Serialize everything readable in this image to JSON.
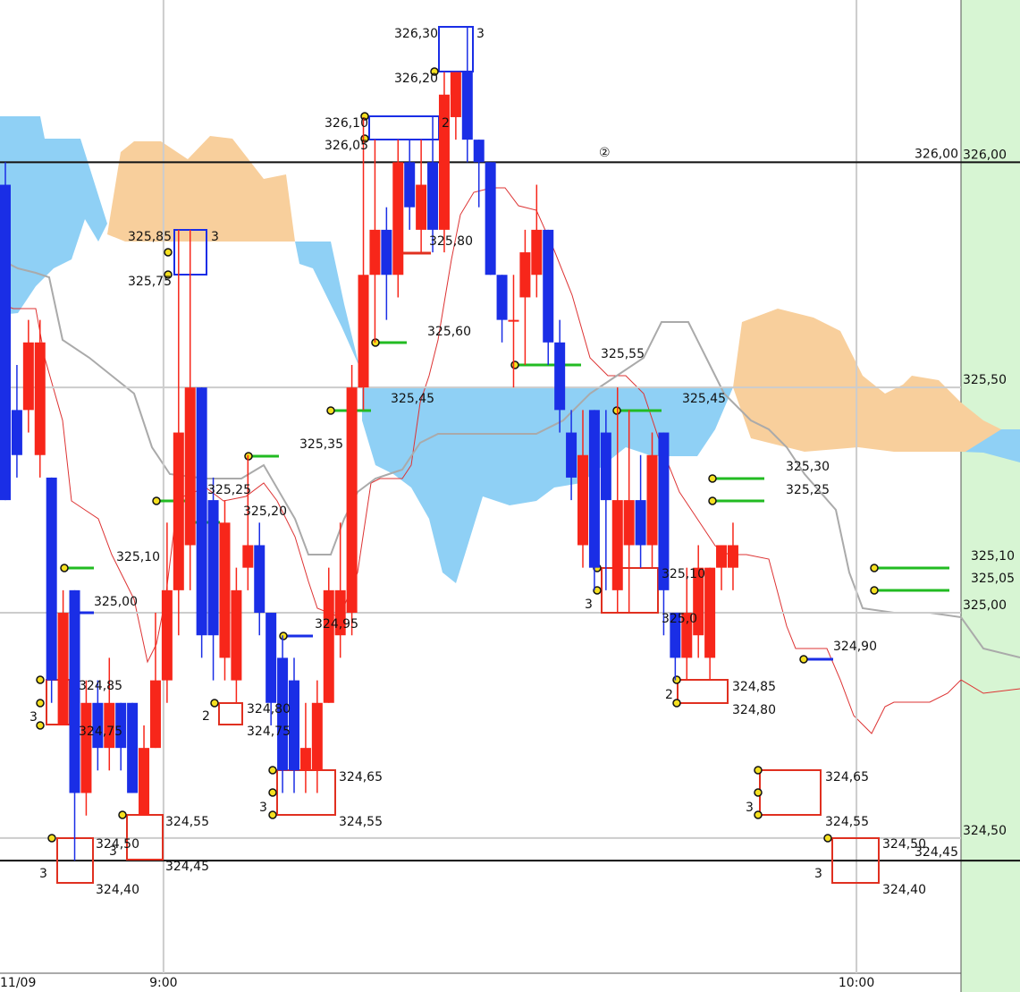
{
  "chart_data": {
    "type": "candlestick",
    "categories": [
      "11/09",
      null,
      null,
      null,
      null,
      null,
      null,
      null,
      null,
      null,
      null,
      null,
      null,
      null,
      "9:00",
      null,
      null,
      null,
      null,
      null,
      null,
      null,
      null,
      null,
      null,
      null,
      null,
      null,
      null,
      null,
      null,
      null,
      null,
      null,
      null,
      null,
      null,
      null,
      null,
      null,
      null,
      null,
      null,
      null,
      null,
      null,
      null,
      null,
      null,
      null,
      null,
      null,
      null,
      null,
      null,
      null,
      null,
      null,
      null,
      null,
      null,
      null,
      null,
      null,
      null,
      null,
      null,
      null,
      null,
      null,
      null,
      null,
      null,
      null,
      "10:00",
      null,
      null,
      null,
      null,
      null,
      null,
      null,
      null,
      null
    ],
    "open": [
      325.95,
      325.45,
      325.45,
      325.35,
      325.3,
      324.75,
      325.05,
      324.6,
      324.8,
      324.7,
      324.8,
      324.8,
      324.55,
      324.7,
      324.85,
      325.05,
      325.15,
      325.5,
      325.25,
      324.9,
      324.85,
      325.1,
      325.15,
      325,
      324.9,
      324.85,
      324.65,
      324.65,
      324.8,
      324.95,
      325,
      325.5,
      325.75,
      325.85,
      325.75,
      326,
      325.85,
      326,
      325.85,
      326.1,
      326.2,
      326.05,
      326,
      325.75,
      325.65,
      325.7,
      325.75,
      325.85,
      325.6,
      325.4,
      325.15,
      325.45,
      325.4,
      325.05,
      325.15,
      325.25,
      325.15,
      325.4,
      325,
      324.9,
      324.95,
      324.9,
      325.1,
      325.1,
      null,
      null,
      null,
      null,
      null,
      null,
      null,
      null,
      null,
      null,
      null,
      null,
      null,
      null,
      null,
      null,
      null,
      null,
      null,
      null
    ],
    "high": [
      326,
      325.55,
      325.65,
      325.65,
      325.3,
      325.05,
      325.05,
      324.85,
      324.85,
      324.9,
      324.8,
      324.8,
      324.75,
      325,
      325.2,
      325.85,
      325.85,
      325.5,
      325.3,
      325.25,
      325.1,
      325.35,
      325.2,
      325,
      324.95,
      324.9,
      324.8,
      324.85,
      325.1,
      325.2,
      325.55,
      326.1,
      326.05,
      325.9,
      326.05,
      326.05,
      326.05,
      326.1,
      326.2,
      326.2,
      326.3,
      326.05,
      326,
      325.75,
      325.75,
      325.85,
      325.95,
      325.85,
      325.65,
      325.45,
      325.45,
      325.45,
      325.45,
      325.5,
      325.45,
      325.35,
      325.4,
      325.4,
      325,
      325.1,
      325.15,
      325.1,
      325.15,
      325.2,
      null,
      null,
      null,
      null,
      null,
      null,
      null,
      null,
      null,
      null,
      null,
      null,
      null,
      null,
      null,
      null,
      null,
      null,
      null,
      null
    ],
    "low": [
      325.25,
      325.3,
      325.4,
      325.3,
      324.8,
      324.75,
      324.45,
      324.55,
      324.65,
      324.65,
      324.65,
      324.6,
      324.55,
      324.7,
      324.8,
      324.95,
      325.05,
      324.9,
      324.85,
      324.85,
      324.8,
      325.05,
      324.95,
      324.75,
      324.6,
      324.6,
      324.6,
      324.6,
      324.8,
      324.9,
      324.95,
      325.45,
      325.6,
      325.65,
      325.7,
      325.85,
      325.8,
      325.8,
      325.8,
      326.05,
      326,
      325.9,
      325.75,
      325.6,
      325.5,
      325.55,
      325.7,
      325.55,
      325.4,
      325.25,
      325.1,
      325.05,
      325.05,
      325,
      325,
      325.1,
      325.1,
      324.95,
      324.85,
      324.85,
      324.9,
      324.85,
      325.05,
      325.05,
      null,
      null,
      null,
      null,
      null,
      null,
      null,
      null,
      null,
      null,
      null,
      null,
      null,
      null,
      null,
      null,
      null,
      null,
      null,
      null
    ],
    "close": [
      325.25,
      325.35,
      325.6,
      325.6,
      324.85,
      325,
      324.6,
      324.8,
      324.7,
      324.8,
      324.7,
      324.6,
      324.7,
      324.85,
      325.05,
      325.4,
      325.5,
      324.95,
      324.95,
      325.2,
      325.05,
      325.15,
      325,
      324.8,
      324.65,
      324.65,
      324.7,
      324.8,
      325.05,
      325.05,
      325.5,
      325.75,
      325.85,
      325.75,
      326,
      325.9,
      325.95,
      325.85,
      326.15,
      326.2,
      326.05,
      326,
      325.75,
      325.65,
      325.65,
      325.8,
      325.85,
      325.6,
      325.45,
      325.3,
      325.35,
      325.1,
      325.25,
      325.25,
      325.25,
      325.15,
      325.35,
      325.05,
      324.9,
      325,
      325.1,
      325.1,
      325.15,
      325.15,
      null,
      null,
      null,
      null,
      null,
      null,
      null,
      null,
      null,
      null,
      null,
      null,
      null,
      null,
      null,
      null,
      null,
      null,
      null,
      null
    ],
    "up_color": "#f7261a",
    "down_color": "#1a2ee6",
    "ylim": [
      324.2,
      326.36
    ],
    "yticks": [
      {
        "value": 324.5,
        "label": "324,50"
      },
      {
        "value": 325,
        "label": "325,00"
      },
      {
        "value": 325.5,
        "label": "325,50"
      },
      {
        "value": 326,
        "label": "326,00"
      }
    ],
    "grid": true,
    "hlines": [
      {
        "value": 326,
        "label": "326,00"
      },
      {
        "value": 324.45,
        "label": "324,45"
      }
    ],
    "annotations": [
      "326,30",
      "3",
      "326,20",
      "326,10",
      "2",
      "326,05",
      "②",
      "325,85",
      "3",
      "325,75",
      "325,80",
      "325,60",
      "325,55",
      "325,45",
      "325,45",
      "325,35",
      "325,25",
      "325,20",
      "325,30",
      "325,25",
      "325,10",
      "325,00",
      "325,10",
      "325,0",
      "3",
      "324,95",
      "324,90",
      "324,85",
      "324,75",
      "3",
      "2",
      "324,80",
      "324,75",
      "324,85",
      "324,80",
      "2",
      "324,65",
      "324,55",
      "3",
      "324,65",
      "324,55",
      "3",
      "324,55",
      "324,50",
      "3",
      "324,45",
      "324,40",
      "3",
      "324,50",
      "324,40",
      "3",
      "325,10",
      "325,05"
    ]
  }
}
